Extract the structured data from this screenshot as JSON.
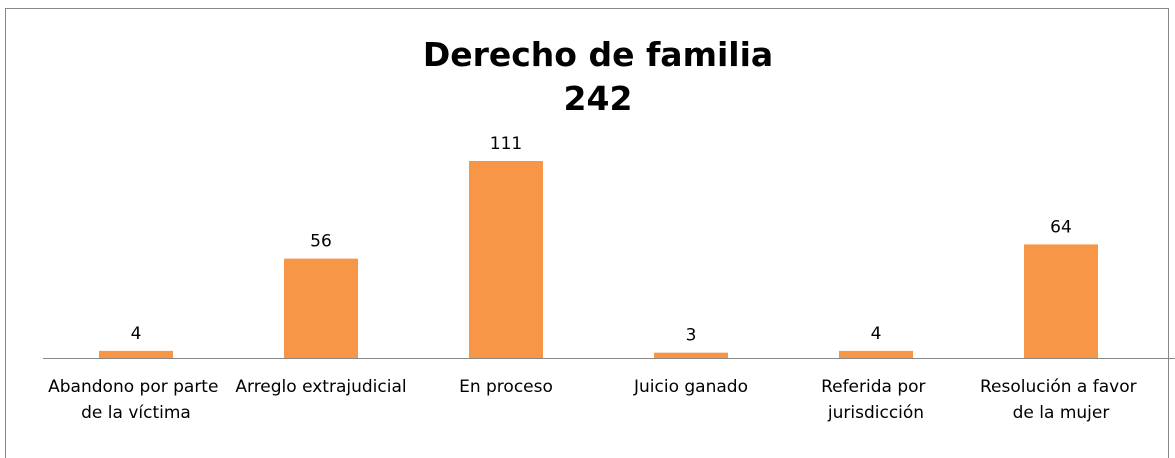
{
  "chart_data": {
    "type": "bar",
    "title": "Derecho de familia",
    "subtitle": "242",
    "categories": [
      "Abandono por parte de la víctima",
      "Arreglo extrajudicial",
      "En proceso",
      "Juicio ganado",
      "Referida por jurisdicción",
      "Resolución a favor de la mujer"
    ],
    "values": [
      4,
      56,
      111,
      3,
      4,
      64
    ],
    "color": "#f79646"
  }
}
